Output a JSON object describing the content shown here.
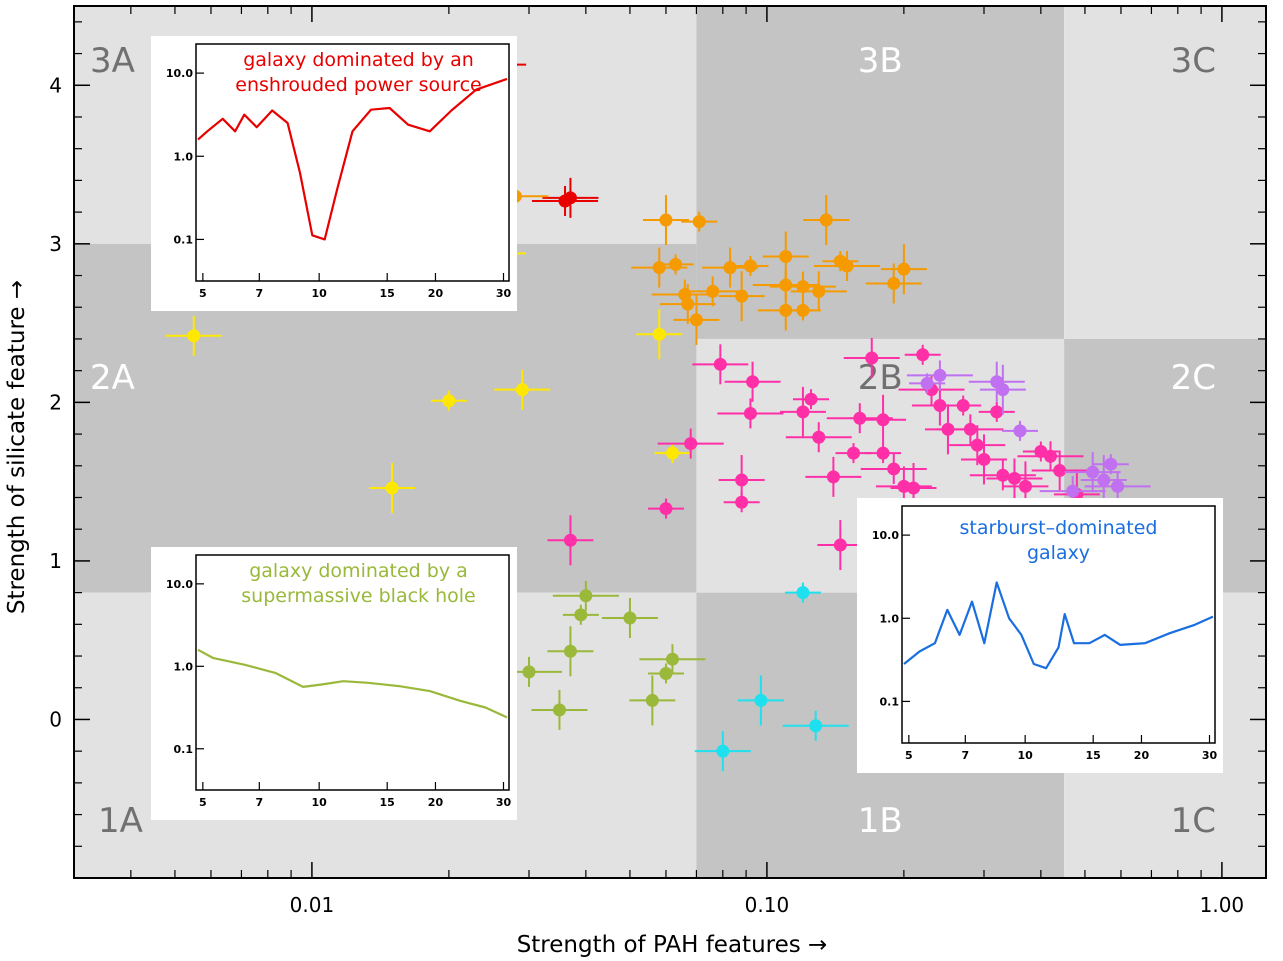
{
  "chart_data": {
    "type": "scatter",
    "xlabel": "Strength of PAH features →",
    "ylabel": "Strength of silicate feature →",
    "xscale": "log",
    "xlim": [
      0.003,
      1.25
    ],
    "ylim": [
      -1.0,
      4.5
    ],
    "x_ticks": [
      0.01,
      0.1,
      1.0
    ],
    "x_tick_labels": [
      "0.01",
      "0.10",
      "1.00"
    ],
    "y_ticks": [
      0,
      1,
      2,
      3,
      4
    ],
    "y_tick_labels": [
      "0",
      "1",
      "2",
      "3",
      "4"
    ],
    "grid": false,
    "zones": [
      {
        "label": "3A",
        "x": [
          0.003,
          0.07
        ],
        "y": [
          3.0,
          4.5
        ],
        "shade": "light"
      },
      {
        "label": "3B",
        "x": [
          0.07,
          0.45
        ],
        "y": [
          2.4,
          4.5
        ],
        "shade": "dark"
      },
      {
        "label": "3C",
        "x": [
          0.45,
          1.25
        ],
        "y": [
          2.4,
          4.5
        ],
        "shade": "light"
      },
      {
        "label": "2A",
        "x": [
          0.003,
          0.07
        ],
        "y": [
          0.8,
          3.0
        ],
        "shade": "dark"
      },
      {
        "label": "2B",
        "x": [
          0.07,
          0.45
        ],
        "y": [
          0.8,
          2.4
        ],
        "shade": "light"
      },
      {
        "label": "2C",
        "x": [
          0.45,
          1.25
        ],
        "y": [
          0.8,
          2.4
        ],
        "shade": "dark"
      },
      {
        "label": "1A",
        "x": [
          0.003,
          0.07
        ],
        "y": [
          -1.0,
          0.8
        ],
        "shade": "light"
      },
      {
        "label": "1B",
        "x": [
          0.07,
          0.45
        ],
        "y": [
          -1.0,
          0.8
        ],
        "shade": "dark"
      },
      {
        "label": "1C",
        "x": [
          0.45,
          1.25
        ],
        "y": [
          -1.0,
          0.8
        ],
        "shade": "light"
      }
    ],
    "series": [
      {
        "color": "#e80000",
        "points": [
          [
            0.027,
            4.13
          ],
          [
            0.036,
            3.27
          ],
          [
            0.037,
            3.29
          ]
        ]
      },
      {
        "color": "#f59a00",
        "points": [
          [
            0.028,
            3.3
          ],
          [
            0.058,
            2.85
          ],
          [
            0.06,
            3.15
          ],
          [
            0.063,
            2.87
          ],
          [
            0.066,
            2.68
          ],
          [
            0.067,
            2.62
          ],
          [
            0.07,
            2.52
          ],
          [
            0.071,
            3.14
          ],
          [
            0.076,
            2.7
          ],
          [
            0.083,
            2.85
          ],
          [
            0.088,
            2.67
          ],
          [
            0.092,
            2.86
          ],
          [
            0.11,
            2.74
          ],
          [
            0.11,
            2.58
          ],
          [
            0.11,
            2.92
          ],
          [
            0.12,
            2.58
          ],
          [
            0.12,
            2.73
          ],
          [
            0.13,
            2.7
          ],
          [
            0.135,
            3.15
          ],
          [
            0.145,
            2.89
          ],
          [
            0.15,
            2.86
          ],
          [
            0.19,
            2.75
          ],
          [
            0.2,
            2.84
          ]
        ]
      },
      {
        "color": "#ffe800",
        "points": [
          [
            0.0055,
            2.42
          ],
          [
            0.015,
            1.46
          ],
          [
            0.02,
            2.01
          ],
          [
            0.025,
            2.94
          ],
          [
            0.029,
            2.08
          ],
          [
            0.058,
            2.43
          ],
          [
            0.062,
            1.68
          ]
        ]
      },
      {
        "color": "#ff2fa8",
        "points": [
          [
            0.037,
            1.13
          ],
          [
            0.06,
            1.33
          ],
          [
            0.068,
            1.74
          ],
          [
            0.079,
            2.24
          ],
          [
            0.088,
            1.51
          ],
          [
            0.088,
            1.37
          ],
          [
            0.092,
            1.93
          ],
          [
            0.093,
            2.13
          ],
          [
            0.12,
            1.94
          ],
          [
            0.125,
            2.02
          ],
          [
            0.13,
            1.78
          ],
          [
            0.14,
            1.53
          ],
          [
            0.145,
            1.1
          ],
          [
            0.155,
            1.68
          ],
          [
            0.16,
            1.9
          ],
          [
            0.17,
            2.28
          ],
          [
            0.18,
            1.89
          ],
          [
            0.18,
            1.68
          ],
          [
            0.19,
            1.58
          ],
          [
            0.2,
            1.47
          ],
          [
            0.21,
            1.46
          ],
          [
            0.22,
            2.3
          ],
          [
            0.23,
            2.08
          ],
          [
            0.24,
            1.98
          ],
          [
            0.25,
            1.83
          ],
          [
            0.27,
            1.98
          ],
          [
            0.28,
            1.83
          ],
          [
            0.29,
            1.73
          ],
          [
            0.3,
            1.64
          ],
          [
            0.32,
            1.94
          ],
          [
            0.33,
            1.54
          ],
          [
            0.35,
            1.52
          ],
          [
            0.37,
            1.47
          ],
          [
            0.4,
            1.69
          ],
          [
            0.42,
            1.66
          ],
          [
            0.44,
            1.57
          ],
          [
            0.48,
            1.42
          ]
        ]
      },
      {
        "color": "#c070f0",
        "points": [
          [
            0.225,
            2.12
          ],
          [
            0.24,
            2.17
          ],
          [
            0.32,
            2.13
          ],
          [
            0.33,
            2.08
          ],
          [
            0.36,
            1.82
          ],
          [
            0.47,
            1.44
          ],
          [
            0.52,
            1.56
          ],
          [
            0.55,
            1.51
          ],
          [
            0.57,
            1.61
          ],
          [
            0.59,
            1.47
          ]
        ]
      },
      {
        "color": "#9ab83a",
        "points": [
          [
            0.03,
            0.3
          ],
          [
            0.035,
            0.06
          ],
          [
            0.037,
            0.43
          ],
          [
            0.039,
            0.66
          ],
          [
            0.04,
            0.78
          ],
          [
            0.05,
            0.64
          ],
          [
            0.056,
            0.12
          ],
          [
            0.06,
            0.29
          ],
          [
            0.062,
            0.38
          ]
        ]
      },
      {
        "color": "#1ee0ee",
        "points": [
          [
            0.08,
            -0.2
          ],
          [
            0.097,
            0.12
          ],
          [
            0.12,
            0.8
          ],
          [
            0.128,
            -0.04
          ]
        ]
      }
    ],
    "insets": [
      {
        "title_lines": [
          "galaxy dominated by an",
          "enshrouded power source"
        ],
        "color": "#e80000",
        "x_tick_labels": [
          "5",
          "7",
          "10",
          "15",
          "20",
          "30"
        ],
        "y_tick_labels": [
          "10.0",
          "1.0",
          "0.1"
        ]
      },
      {
        "title_lines": [
          "galaxy dominated by a",
          "supermassive black hole"
        ],
        "color": "#9ab83a",
        "x_tick_labels": [
          "5",
          "7",
          "10",
          "15",
          "20",
          "30"
        ],
        "y_tick_labels": [
          "10.0",
          "1.0",
          "0.1"
        ]
      },
      {
        "title_lines": [
          "starburst–dominated",
          "galaxy"
        ],
        "color": "#1a6ee0",
        "x_tick_labels": [
          "5",
          "7",
          "10",
          "15",
          "20",
          "30"
        ],
        "y_tick_labels": [
          "10.0",
          "1.0",
          "0.1"
        ]
      }
    ]
  }
}
